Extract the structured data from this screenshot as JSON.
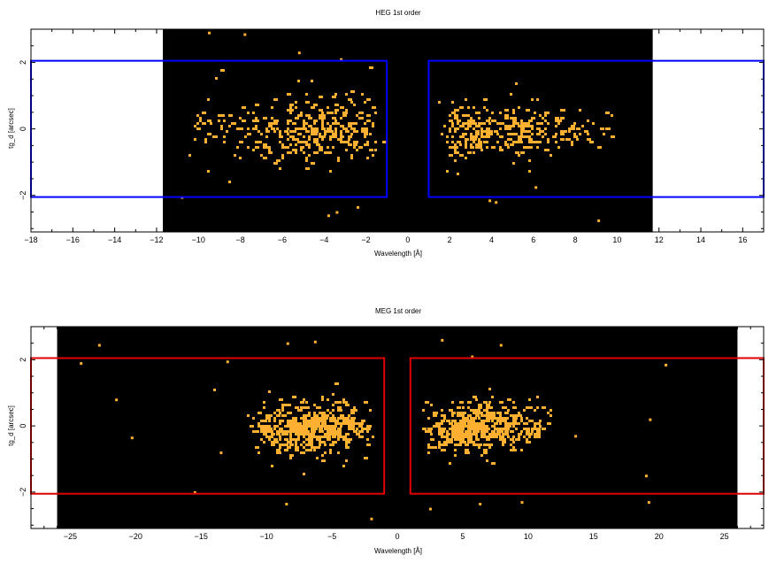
{
  "colors": {
    "background_field": "#000000",
    "event": "#ffb030",
    "heg_box": "#0000ff",
    "meg_box": "#e00000",
    "axis": "#000000"
  },
  "chart_data": [
    {
      "type": "scatter",
      "title": "HEG 1st order",
      "xlabel": "Wavelength [Å]",
      "ylabel": "tg_d [arcsec]",
      "xlim": [
        -18,
        17
      ],
      "ylim": [
        -3.1,
        3.0
      ],
      "xticks": [
        -18,
        -16,
        -14,
        -12,
        -10,
        -8,
        -6,
        -4,
        -2,
        0,
        2,
        4,
        6,
        8,
        10,
        12,
        14,
        16
      ],
      "yticks": [
        -2,
        0,
        2
      ],
      "field_x_range": [
        -11.7,
        11.7
      ],
      "extraction_boxes": [
        {
          "x": [
            -18,
            -1.0
          ],
          "y": [
            -2.05,
            2.05
          ]
        },
        {
          "x": [
            1.0,
            17
          ],
          "y": [
            -2.05,
            2.05
          ]
        }
      ],
      "clusters": [
        {
          "xmin": -11.5,
          "xmax": -1.2,
          "peak": -2.8,
          "sigma_y": 0.5,
          "n": 360
        },
        {
          "xmin": 1.4,
          "xmax": 9.8,
          "peak": 2.8,
          "sigma_y": 0.42,
          "n": 330
        }
      ],
      "outliers": [
        {
          "x": -9.5,
          "y": 2.9
        },
        {
          "x": -7.8,
          "y": 2.85
        },
        {
          "x": -3.2,
          "y": 2.1
        },
        {
          "x": -5.2,
          "y": 2.3
        },
        {
          "x": -10.8,
          "y": -2.05
        },
        {
          "x": -3.8,
          "y": -2.6
        },
        {
          "x": -3.4,
          "y": -2.5
        },
        {
          "x": -2.4,
          "y": -2.35
        },
        {
          "x": 3.9,
          "y": -2.15
        },
        {
          "x": 4.2,
          "y": -2.2
        },
        {
          "x": 9.1,
          "y": -2.75
        },
        {
          "x": 6.1,
          "y": -1.75
        }
      ]
    },
    {
      "type": "scatter",
      "title": "MEG 1st order",
      "xlabel": "Wavelength [Å]",
      "ylabel": "tg_d [arcsec]",
      "xlim": [
        -28,
        28
      ],
      "ylim": [
        -3.1,
        3.0
      ],
      "xticks": [
        -25,
        -20,
        -15,
        -10,
        -5,
        0,
        5,
        10,
        15,
        20,
        25
      ],
      "yticks": [
        -2,
        0,
        2
      ],
      "field_x_range": [
        -26,
        26
      ],
      "extraction_boxes": [
        {
          "x": [
            -28,
            -1.0
          ],
          "y": [
            -2.05,
            2.05
          ]
        },
        {
          "x": [
            1.0,
            28
          ],
          "y": [
            -2.05,
            2.05
          ]
        }
      ],
      "clusters": [
        {
          "xmin": -12.0,
          "xmax": -1.6,
          "peak": -6.5,
          "sigma_y": 0.38,
          "n": 520
        },
        {
          "xmin": 1.6,
          "xmax": 12.0,
          "peak": 5.5,
          "sigma_y": 0.36,
          "n": 520
        }
      ],
      "outliers": [
        {
          "x": -22.8,
          "y": 2.45
        },
        {
          "x": -24.2,
          "y": 1.9
        },
        {
          "x": -13.0,
          "y": 1.95
        },
        {
          "x": -21.5,
          "y": 0.8
        },
        {
          "x": -20.3,
          "y": -0.35
        },
        {
          "x": -14.0,
          "y": 1.1
        },
        {
          "x": -13.5,
          "y": -0.8
        },
        {
          "x": -8.4,
          "y": 2.5
        },
        {
          "x": -6.3,
          "y": 2.55
        },
        {
          "x": 3.4,
          "y": 2.6
        },
        {
          "x": 5.7,
          "y": 2.1
        },
        {
          "x": 7.9,
          "y": 2.45
        },
        {
          "x": 20.5,
          "y": 1.85
        },
        {
          "x": 19.0,
          "y": -1.5
        },
        {
          "x": 19.2,
          "y": -2.3
        },
        {
          "x": 13.6,
          "y": -0.3
        },
        {
          "x": 19.3,
          "y": 0.2
        },
        {
          "x": -8.5,
          "y": -2.35
        },
        {
          "x": 2.5,
          "y": -2.5
        },
        {
          "x": -2.0,
          "y": -2.8
        },
        {
          "x": 6.3,
          "y": -2.35
        },
        {
          "x": 9.5,
          "y": -2.3
        },
        {
          "x": -15.5,
          "y": -2.0
        }
      ]
    }
  ]
}
